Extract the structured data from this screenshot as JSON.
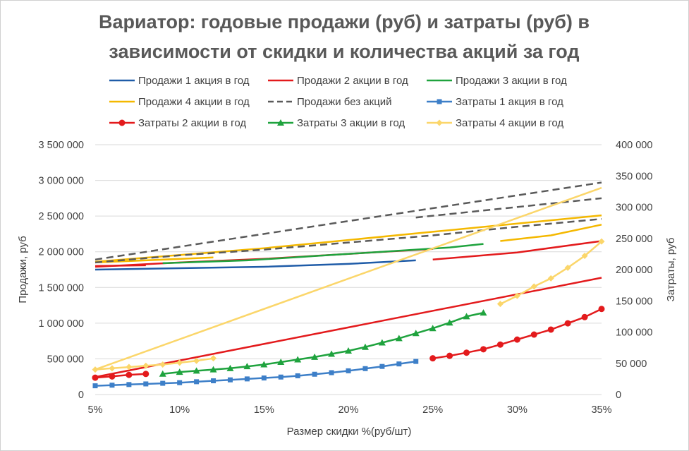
{
  "chart_data": {
    "type": "line",
    "title_lines": [
      "Вариатор: годовые продажи (руб) и затраты (руб) в",
      "зависимости от скидки и количества акций за год"
    ],
    "xlabel": "Размер скидки %(руб/шт)",
    "ylabel": "Продажи, руб",
    "y2label": "Затраты, руб",
    "xlim": [
      5,
      35
    ],
    "ylim": [
      0,
      3500000
    ],
    "y2lim": [
      0,
      400000
    ],
    "x_ticks": [
      5,
      10,
      15,
      20,
      25,
      30,
      35
    ],
    "x_tick_labels": [
      "5%",
      "10%",
      "15%",
      "20%",
      "25%",
      "30%",
      "35%"
    ],
    "y_ticks": [
      0,
      500000,
      1000000,
      1500000,
      2000000,
      2500000,
      3000000,
      3500000
    ],
    "y_tick_labels": [
      "0",
      "500 000",
      "1 000 000",
      "1 500 000",
      "2 000 000",
      "2 500 000",
      "3 000 000",
      "3 500 000"
    ],
    "y2_ticks": [
      0,
      50000,
      100000,
      150000,
      200000,
      250000,
      300000,
      350000,
      400000
    ],
    "y2_tick_labels": [
      "0",
      "50 000",
      "100 000",
      "150 000",
      "200 000",
      "250 000",
      "300 000",
      "350 000",
      "400 000"
    ],
    "grid": true,
    "legend_position": "top",
    "series": [
      {
        "name": "Продажи 1 акция в год",
        "axis": "left",
        "color": "#1f5ca8",
        "dash": "solid",
        "marker": "none",
        "segments": [
          [
            [
              5,
              1750000
            ],
            [
              10,
              1770000
            ],
            [
              15,
              1790000
            ],
            [
              20,
              1830000
            ],
            [
              24,
              1880000
            ]
          ]
        ]
      },
      {
        "name": "Продажи 2 акции в год",
        "axis": "left",
        "color": "#e31a1c",
        "dash": "solid",
        "marker": "none",
        "segments": [
          [
            [
              5,
              1800000
            ],
            [
              8,
              1810000
            ]
          ],
          [
            [
              5,
              1790000
            ],
            [
              10,
              1850000
            ],
            [
              15,
              1900000
            ],
            [
              20,
              1970000
            ],
            [
              25,
              2040000
            ]
          ],
          [
            [
              25,
              1890000
            ],
            [
              30,
              1990000
            ],
            [
              35,
              2150000
            ]
          ]
        ]
      },
      {
        "name": "Продажи 3 акции в год",
        "axis": "left",
        "color": "#1fa33e",
        "dash": "solid",
        "marker": "none",
        "segments": [
          [
            [
              9,
              1840000
            ],
            [
              14,
              1880000
            ],
            [
              18,
              1940000
            ],
            [
              22,
              2000000
            ],
            [
              26,
              2060000
            ],
            [
              28,
              2110000
            ]
          ]
        ]
      },
      {
        "name": "Продажи 4 акции в год",
        "axis": "left",
        "color": "#f4b800",
        "dash": "solid",
        "marker": "none",
        "segments": [
          [
            [
              5,
              1850000
            ],
            [
              12,
              1920000
            ]
          ],
          [
            [
              5,
              1860000
            ],
            [
              15,
              2050000
            ],
            [
              25,
              2280000
            ],
            [
              35,
              2510000
            ]
          ],
          [
            [
              29,
              2150000
            ],
            [
              32,
              2230000
            ],
            [
              35,
              2380000
            ]
          ]
        ]
      },
      {
        "name": "Продажи без акций",
        "axis": "left",
        "color": "#5a5a5a",
        "dash": "dashed",
        "marker": "none",
        "segments": [
          [
            [
              5,
              1890000
            ],
            [
              35,
              2970000
            ]
          ],
          [
            [
              5,
              1850000
            ],
            [
              10,
              1950000
            ],
            [
              15,
              2030000
            ],
            [
              20,
              2130000
            ],
            [
              25,
              2230000
            ],
            [
              30,
              2350000
            ],
            [
              35,
              2460000
            ]
          ],
          [
            [
              24,
              2480000
            ],
            [
              35,
              2750000
            ]
          ]
        ]
      },
      {
        "name": "Затраты 1 акция в год",
        "axis": "right",
        "color": "#3d7fc8",
        "dash": "solid",
        "marker": "square",
        "segments": [
          [
            [
              5,
              14000
            ],
            [
              6,
              15000
            ],
            [
              7,
              16000
            ],
            [
              8,
              17000
            ],
            [
              9,
              18000
            ],
            [
              10,
              19000
            ],
            [
              11,
              20500
            ],
            [
              12,
              22000
            ],
            [
              13,
              23500
            ],
            [
              14,
              25000
            ],
            [
              15,
              26500
            ],
            [
              16,
              28000
            ],
            [
              17,
              30000
            ],
            [
              18,
              32500
            ],
            [
              19,
              35000
            ],
            [
              20,
              38000
            ],
            [
              21,
              41500
            ],
            [
              22,
              45000
            ],
            [
              23,
              49000
            ],
            [
              24,
              53000
            ]
          ]
        ]
      },
      {
        "name": "Затраты 2 акции в год",
        "axis": "right",
        "color": "#e31a1c",
        "dash": "solid",
        "marker": "circle",
        "segments": [
          [
            [
              5,
              27000
            ],
            [
              6,
              29000
            ],
            [
              7,
              31500
            ],
            [
              8,
              33000
            ]
          ],
          [
            [
              25,
              58000
            ],
            [
              26,
              62000
            ],
            [
              27,
              67000
            ],
            [
              28,
              72500
            ],
            [
              29,
              80000
            ],
            [
              30,
              88000
            ],
            [
              31,
              96000
            ],
            [
              32,
              104000
            ],
            [
              33,
              114000
            ],
            [
              34,
              124000
            ],
            [
              35,
              137000
            ]
          ]
        ],
        "trend": [
          [
            5,
            28000
          ],
          [
            35,
            187000
          ]
        ]
      },
      {
        "name": "Затраты 3 акции в год",
        "axis": "right",
        "color": "#1fa33e",
        "dash": "solid",
        "marker": "triangle",
        "segments": [
          [
            [
              9,
              33000
            ],
            [
              10,
              36000
            ],
            [
              11,
              38000
            ],
            [
              12,
              40000
            ],
            [
              13,
              42000
            ],
            [
              14,
              45000
            ],
            [
              15,
              48000
            ],
            [
              16,
              52000
            ],
            [
              17,
              56000
            ],
            [
              18,
              60000
            ],
            [
              19,
              65000
            ],
            [
              20,
              70000
            ],
            [
              21,
              76000
            ],
            [
              22,
              83000
            ],
            [
              23,
              90000
            ],
            [
              24,
              98000
            ],
            [
              25,
              106000
            ],
            [
              26,
              115000
            ],
            [
              27,
              125000
            ],
            [
              28,
              131000
            ]
          ]
        ]
      },
      {
        "name": "Затраты 4 акции в год",
        "axis": "right",
        "color": "#fbd66a",
        "dash": "solid",
        "marker": "diamond",
        "segments": [
          [
            [
              5,
              40000
            ],
            [
              6,
              42000
            ],
            [
              7,
              44000
            ],
            [
              8,
              46000
            ],
            [
              9,
              48000
            ],
            [
              10,
              51000
            ],
            [
              11,
              54000
            ],
            [
              12,
              58000
            ]
          ],
          [
            [
              29,
              145000
            ],
            [
              30,
              158000
            ],
            [
              31,
              173000
            ],
            [
              32,
              186000
            ],
            [
              33,
              203000
            ],
            [
              34,
              222000
            ],
            [
              35,
              245000
            ]
          ]
        ],
        "trend": [
          [
            5,
            40000
          ],
          [
            35,
            331000
          ]
        ]
      }
    ]
  }
}
